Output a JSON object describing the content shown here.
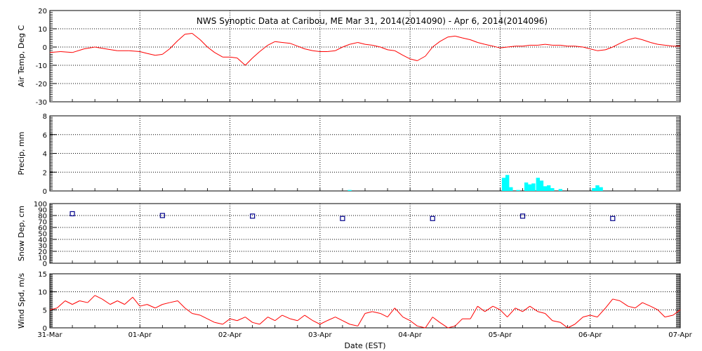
{
  "title": "NWS Synoptic Data at Caribou, ME   Mar 31, 2014(2014090) - Apr  6, 2014(2014096)",
  "xlabel": "Date (EST)",
  "x_ticks": [
    "31-Mar",
    "01-Apr",
    "02-Apr",
    "03-Apr",
    "04-Apr",
    "05-Apr",
    "06-Apr",
    "07-Apr"
  ],
  "colors": {
    "temperature": "#ff0000",
    "precipitation": "#00ffff",
    "snow_depth": "#00008b",
    "wind_speed": "#ff0000",
    "grid": "#000000"
  },
  "chart_data": [
    {
      "type": "line",
      "ylabel": "Air Temp, Deg C",
      "xlim": [
        0,
        7
      ],
      "ylim": [
        -30,
        20
      ],
      "yticks": [
        -30,
        -20,
        -10,
        0,
        10,
        20
      ],
      "grid": true,
      "x": [
        0,
        0.12,
        0.25,
        0.38,
        0.5,
        0.62,
        0.75,
        0.88,
        1.0,
        1.08,
        1.17,
        1.25,
        1.33,
        1.42,
        1.5,
        1.58,
        1.67,
        1.75,
        1.83,
        1.92,
        2.0,
        2.08,
        2.17,
        2.25,
        2.33,
        2.42,
        2.5,
        2.58,
        2.67,
        2.75,
        2.83,
        2.92,
        3.0,
        3.08,
        3.17,
        3.25,
        3.33,
        3.42,
        3.5,
        3.58,
        3.67,
        3.75,
        3.83,
        3.92,
        4.0,
        4.08,
        4.17,
        4.25,
        4.33,
        4.42,
        4.5,
        4.58,
        4.67,
        4.75,
        4.83,
        4.92,
        5.0,
        5.08,
        5.17,
        5.25,
        5.33,
        5.42,
        5.5,
        5.58,
        5.67,
        5.75,
        5.83,
        5.92,
        6.0,
        6.08,
        6.17,
        6.25,
        6.33,
        6.42,
        6.5,
        6.58,
        6.67,
        6.75,
        6.83,
        6.92,
        7.0
      ],
      "y": [
        -3,
        -2.5,
        -3,
        -1,
        0,
        -1,
        -2,
        -2,
        -2.5,
        -3.5,
        -4.5,
        -4,
        -1,
        3.5,
        7,
        7.5,
        4,
        0,
        -3,
        -5.5,
        -5.5,
        -6,
        -10,
        -6,
        -2.5,
        1,
        3,
        2.5,
        2,
        0.5,
        -1,
        -2,
        -2.5,
        -2.5,
        -2,
        0,
        1.5,
        2.5,
        1.5,
        1,
        0,
        -1.5,
        -2,
        -4.5,
        -6.5,
        -7.5,
        -5,
        0,
        3,
        5.5,
        6,
        5,
        4,
        2.5,
        1.5,
        0.5,
        -0.5,
        0,
        0.5,
        0.5,
        1,
        1,
        1.5,
        1,
        1,
        0.5,
        0.5,
        0,
        -1,
        -2,
        -1.5,
        0,
        2,
        4,
        5,
        4,
        2.5,
        1.5,
        1,
        0.5,
        0.5
      ]
    },
    {
      "type": "bar",
      "ylabel": "Precip, mm",
      "xlim": [
        0,
        7
      ],
      "ylim": [
        0,
        8
      ],
      "yticks": [
        0,
        2,
        4,
        6,
        8
      ],
      "grid": true,
      "bar_width_days": 0.042,
      "x": [
        3.33,
        5.04,
        5.08,
        5.12,
        5.2,
        5.29,
        5.33,
        5.37,
        5.42,
        5.46,
        5.5,
        5.54,
        5.58,
        5.67,
        6.04,
        6.08,
        6.12
      ],
      "values": [
        0.1,
        1.4,
        1.7,
        0.4,
        0.1,
        0.9,
        0.7,
        0.8,
        1.4,
        1.1,
        0.5,
        0.6,
        0.3,
        0.2,
        0.3,
        0.6,
        0.4
      ]
    },
    {
      "type": "scatter",
      "ylabel": "Snow Dep, cm",
      "xlim": [
        0,
        7
      ],
      "ylim": [
        0,
        100
      ],
      "yticks": [
        0,
        20,
        40,
        60,
        80,
        100
      ],
      "minor_yticks": [
        10,
        30,
        50,
        70,
        90
      ],
      "grid": true,
      "x": [
        0.25,
        1.25,
        2.25,
        3.25,
        4.25,
        5.25,
        6.25
      ],
      "y": [
        83,
        80,
        79,
        75,
        75,
        79,
        75
      ]
    },
    {
      "type": "line",
      "ylabel": "Wind Spd, m/s",
      "xlim": [
        0,
        7
      ],
      "ylim": [
        0,
        15
      ],
      "yticks": [
        0,
        5,
        10,
        15
      ],
      "grid": true,
      "x": [
        0,
        0.08,
        0.17,
        0.25,
        0.33,
        0.42,
        0.5,
        0.58,
        0.67,
        0.75,
        0.83,
        0.92,
        1.0,
        1.08,
        1.17,
        1.25,
        1.33,
        1.42,
        1.5,
        1.58,
        1.67,
        1.75,
        1.83,
        1.92,
        2.0,
        2.08,
        2.17,
        2.25,
        2.33,
        2.42,
        2.5,
        2.58,
        2.67,
        2.75,
        2.83,
        2.92,
        3.0,
        3.08,
        3.17,
        3.25,
        3.33,
        3.42,
        3.5,
        3.58,
        3.67,
        3.75,
        3.83,
        3.92,
        4.0,
        4.08,
        4.17,
        4.25,
        4.33,
        4.42,
        4.5,
        4.58,
        4.67,
        4.75,
        4.83,
        4.92,
        5.0,
        5.08,
        5.17,
        5.25,
        5.33,
        5.42,
        5.5,
        5.58,
        5.67,
        5.75,
        5.83,
        5.92,
        6.0,
        6.08,
        6.17,
        6.25,
        6.33,
        6.42,
        6.5,
        6.58,
        6.67,
        6.75,
        6.83,
        6.92,
        7.0
      ],
      "y": [
        5,
        5.5,
        7.5,
        6.5,
        7.5,
        7,
        9,
        8,
        6.5,
        7.5,
        6.5,
        8.5,
        6,
        6.5,
        5.5,
        6.5,
        7,
        7.5,
        5.5,
        4,
        3.5,
        2.5,
        1.5,
        1,
        2.5,
        2,
        3,
        1.5,
        1,
        3,
        2,
        3.5,
        2.5,
        2,
        3.5,
        2,
        1,
        2,
        3,
        2,
        1,
        0.5,
        4,
        4.5,
        4,
        3,
        5.5,
        3,
        2,
        0.5,
        0,
        3,
        1.5,
        0,
        0.5,
        2.5,
        2.5,
        6,
        4.5,
        6,
        5,
        3,
        5.5,
        4.5,
        6,
        4.5,
        4,
        2,
        1.5,
        0,
        1,
        3,
        3.5,
        3,
        5.5,
        8,
        7.5,
        6,
        5.5,
        7,
        6,
        5,
        3,
        3.5,
        5
      ]
    }
  ]
}
